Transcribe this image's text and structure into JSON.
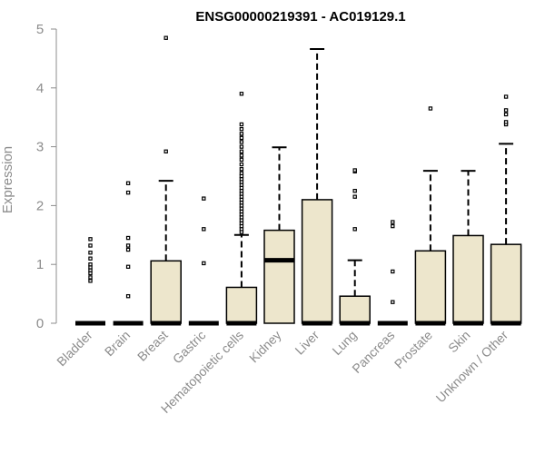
{
  "chart_data": {
    "type": "box",
    "title": "ENSG00000219391 - AC019129.1",
    "xlabel": "",
    "ylabel": "Expression",
    "ylim": [
      0,
      5
    ],
    "yticks": [
      0,
      1,
      2,
      3,
      4,
      5
    ],
    "box_fill": "#ede6cc",
    "categories": [
      "Bladder",
      "Brain",
      "Breast",
      "Gastric",
      "Hematopoietic cells",
      "Kidney",
      "Liver",
      "Lung",
      "Pancreas",
      "Prostate",
      "Skin",
      "Unknown / Other"
    ],
    "boxes": [
      {
        "q1": 0,
        "median": 0,
        "q3": 0,
        "whisker_low": 0,
        "whisker_high": 0,
        "outliers": [
          0.72,
          0.78,
          0.85,
          0.9,
          0.95,
          1.0,
          1.1,
          1.2,
          1.32,
          1.43
        ]
      },
      {
        "q1": 0,
        "median": 0,
        "q3": 0,
        "whisker_low": 0,
        "whisker_high": 0,
        "outliers": [
          0.46,
          0.96,
          1.25,
          1.32,
          1.45,
          2.22,
          2.38
        ]
      },
      {
        "q1": 0,
        "median": 0,
        "q3": 1.06,
        "whisker_low": 0,
        "whisker_high": 2.42,
        "outliers": [
          2.92,
          4.85
        ]
      },
      {
        "q1": 0,
        "median": 0,
        "q3": 0,
        "whisker_low": 0,
        "whisker_high": 0,
        "outliers": [
          1.02,
          1.6,
          2.12
        ]
      },
      {
        "q1": 0,
        "median": 0,
        "q3": 0.61,
        "whisker_low": 0,
        "whisker_high": 1.5,
        "outliers": [
          1.55,
          1.6,
          1.65,
          1.7,
          1.75,
          1.8,
          1.85,
          1.9,
          1.95,
          2.0,
          2.05,
          2.1,
          2.15,
          2.2,
          2.25,
          2.3,
          2.35,
          2.4,
          2.45,
          2.5,
          2.55,
          2.62,
          2.7,
          2.78,
          2.85,
          2.92,
          3.0,
          3.08,
          3.15,
          3.22,
          3.3,
          3.38,
          3.9
        ]
      },
      {
        "q1": 0,
        "median": 1.07,
        "q3": 1.58,
        "whisker_low": 0,
        "whisker_high": 2.99,
        "outliers": []
      },
      {
        "q1": 0,
        "median": 0,
        "q3": 2.1,
        "whisker_low": 0,
        "whisker_high": 4.66,
        "outliers": []
      },
      {
        "q1": 0,
        "median": 0,
        "q3": 0.46,
        "whisker_low": 0,
        "whisker_high": 1.07,
        "outliers": [
          1.6,
          2.15,
          2.25,
          2.58,
          2.6
        ]
      },
      {
        "q1": 0,
        "median": 0,
        "q3": 0,
        "whisker_low": 0,
        "whisker_high": 0,
        "outliers": [
          0.36,
          0.88,
          1.65,
          1.72
        ]
      },
      {
        "q1": 0,
        "median": 0,
        "q3": 1.23,
        "whisker_low": 0,
        "whisker_high": 2.59,
        "outliers": [
          3.65
        ]
      },
      {
        "q1": 0,
        "median": 0,
        "q3": 1.49,
        "whisker_low": 0,
        "whisker_high": 2.59,
        "outliers": []
      },
      {
        "q1": 0,
        "median": 0,
        "q3": 1.34,
        "whisker_low": 0,
        "whisker_high": 3.05,
        "outliers": [
          3.38,
          3.42,
          3.55,
          3.62,
          3.85
        ]
      }
    ]
  }
}
